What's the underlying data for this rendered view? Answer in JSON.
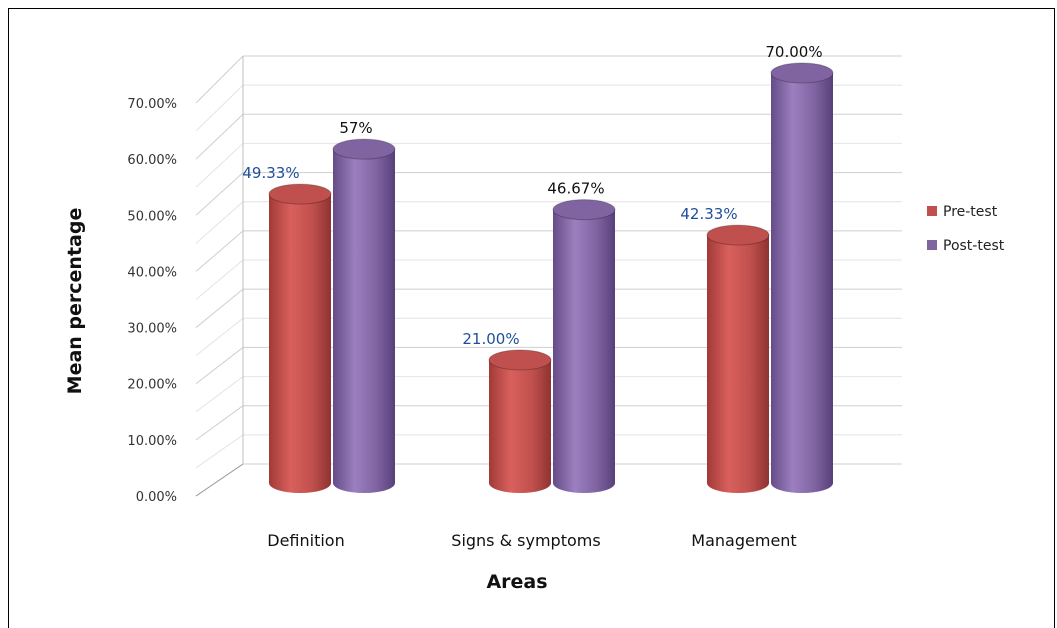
{
  "chart_data": {
    "type": "bar",
    "title": "",
    "xlabel": "Areas",
    "ylabel": "Mean percentage",
    "ylim": [
      0,
      70
    ],
    "yticks": [
      "0.00%",
      "10.00%",
      "20.00%",
      "30.00%",
      "40.00%",
      "50.00%",
      "60.00%",
      "70.00%"
    ],
    "categories": [
      "Definition",
      "Signs & symptoms",
      "Management"
    ],
    "series": [
      {
        "name": "Pre-test",
        "color": "#c0504d",
        "values": [
          49.33,
          21.0,
          42.33
        ],
        "labels": [
          "49.33%",
          "21.00%",
          "42.33%"
        ],
        "label_color": "#1f4e9c"
      },
      {
        "name": "Post-test",
        "color": "#8064a2",
        "values": [
          57,
          46.67,
          70.0
        ],
        "labels": [
          "57%",
          "46.67%",
          "70.00%"
        ],
        "label_color": "#111111"
      }
    ],
    "grid": true,
    "legend": "right",
    "bar_shape": "3d-cylinder"
  }
}
